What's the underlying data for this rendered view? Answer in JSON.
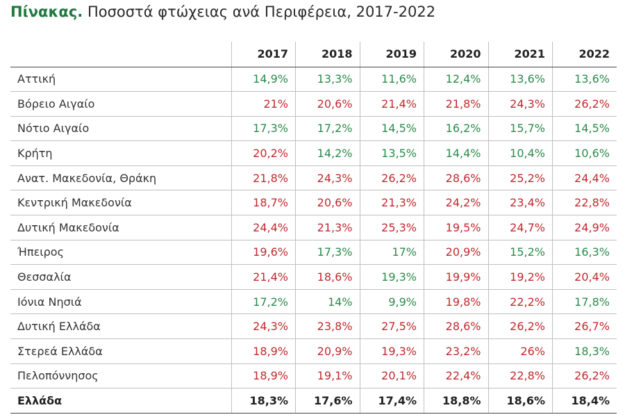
{
  "title_lead": "Πίνακας.",
  "title_rest": "Ποσοστά φτώχειας ανά Περιφέρεια, 2017-2022",
  "colors": {
    "title_accent": "#1f7a3f",
    "value_high": "#c0282d",
    "value_low": "#2a8a4a"
  },
  "chart_data": {
    "type": "table",
    "columns": [
      "2017",
      "2018",
      "2019",
      "2020",
      "2021",
      "2022"
    ],
    "rows": [
      {
        "label": "Αττική",
        "values": [
          "14,9%",
          "13,3%",
          "11,6%",
          "12,4%",
          "13,6%",
          "13,6%"
        ],
        "colors": [
          "g",
          "g",
          "g",
          "g",
          "g",
          "g"
        ]
      },
      {
        "label": "Βόρειο Αιγαίο",
        "values": [
          "21%",
          "20,6%",
          "21,4%",
          "21,8%",
          "24,3%",
          "26,2%"
        ],
        "colors": [
          "r",
          "r",
          "r",
          "r",
          "r",
          "r"
        ]
      },
      {
        "label": "Νότιο Αιγαίο",
        "values": [
          "17,3%",
          "17,2%",
          "14,5%",
          "16,2%",
          "15,7%",
          "14,5%"
        ],
        "colors": [
          "g",
          "g",
          "g",
          "g",
          "g",
          "g"
        ]
      },
      {
        "label": "Κρήτη",
        "values": [
          "20,2%",
          "14,2%",
          "13,5%",
          "14,4%",
          "10,4%",
          "10,6%"
        ],
        "colors": [
          "r",
          "g",
          "g",
          "g",
          "g",
          "g"
        ]
      },
      {
        "label": "Ανατ. Μακεδονία, Θράκη",
        "values": [
          "21,8%",
          "24,3%",
          "26,2%",
          "28,6%",
          "25,2%",
          "24,4%"
        ],
        "colors": [
          "r",
          "r",
          "r",
          "r",
          "r",
          "r"
        ]
      },
      {
        "label": "Κεντρική Μακεδονία",
        "values": [
          "18,7%",
          "20,6%",
          "21,3%",
          "24,2%",
          "23,4%",
          "22,8%"
        ],
        "colors": [
          "r",
          "r",
          "r",
          "r",
          "r",
          "r"
        ]
      },
      {
        "label": "Δυτική Μακεδονία",
        "values": [
          "24,4%",
          "21,3%",
          "25,3%",
          "19,5%",
          "24,7%",
          "24,9%"
        ],
        "colors": [
          "r",
          "r",
          "r",
          "r",
          "r",
          "r"
        ]
      },
      {
        "label": "Ήπειρος",
        "values": [
          "19,6%",
          "17,3%",
          "17%",
          "20,9%",
          "15,2%",
          "16,3%"
        ],
        "colors": [
          "r",
          "g",
          "g",
          "r",
          "g",
          "g"
        ]
      },
      {
        "label": "Θεσσαλία",
        "values": [
          "21,4%",
          "18,6%",
          "19,3%",
          "19,9%",
          "19,2%",
          "20,4%"
        ],
        "colors": [
          "r",
          "r",
          "g",
          "r",
          "r",
          "r"
        ]
      },
      {
        "label": "Ιόνια Νησιά",
        "values": [
          "17,2%",
          "14%",
          "9,9%",
          "19,8%",
          "22,2%",
          "17,8%"
        ],
        "colors": [
          "g",
          "g",
          "g",
          "r",
          "r",
          "g"
        ]
      },
      {
        "label": "Δυτική Ελλάδα",
        "values": [
          "24,3%",
          "23,8%",
          "27,5%",
          "28,6%",
          "26,2%",
          "26,7%"
        ],
        "colors": [
          "r",
          "r",
          "r",
          "r",
          "r",
          "r"
        ]
      },
      {
        "label": "Στερεά Ελλάδα",
        "values": [
          "18,9%",
          "20,9%",
          "19,3%",
          "23,2%",
          "26%",
          "18,3%"
        ],
        "colors": [
          "r",
          "r",
          "r",
          "r",
          "r",
          "g"
        ]
      },
      {
        "label": "Πελοπόννησος",
        "values": [
          "18,9%",
          "19,1%",
          "20,1%",
          "22,4%",
          "22,8%",
          "26,2%"
        ],
        "colors": [
          "r",
          "r",
          "r",
          "r",
          "r",
          "r"
        ]
      }
    ],
    "total": {
      "label": "Ελλάδα",
      "values": [
        "18,3%",
        "17,6%",
        "17,4%",
        "18,8%",
        "18,6%",
        "18,4%"
      ]
    }
  }
}
